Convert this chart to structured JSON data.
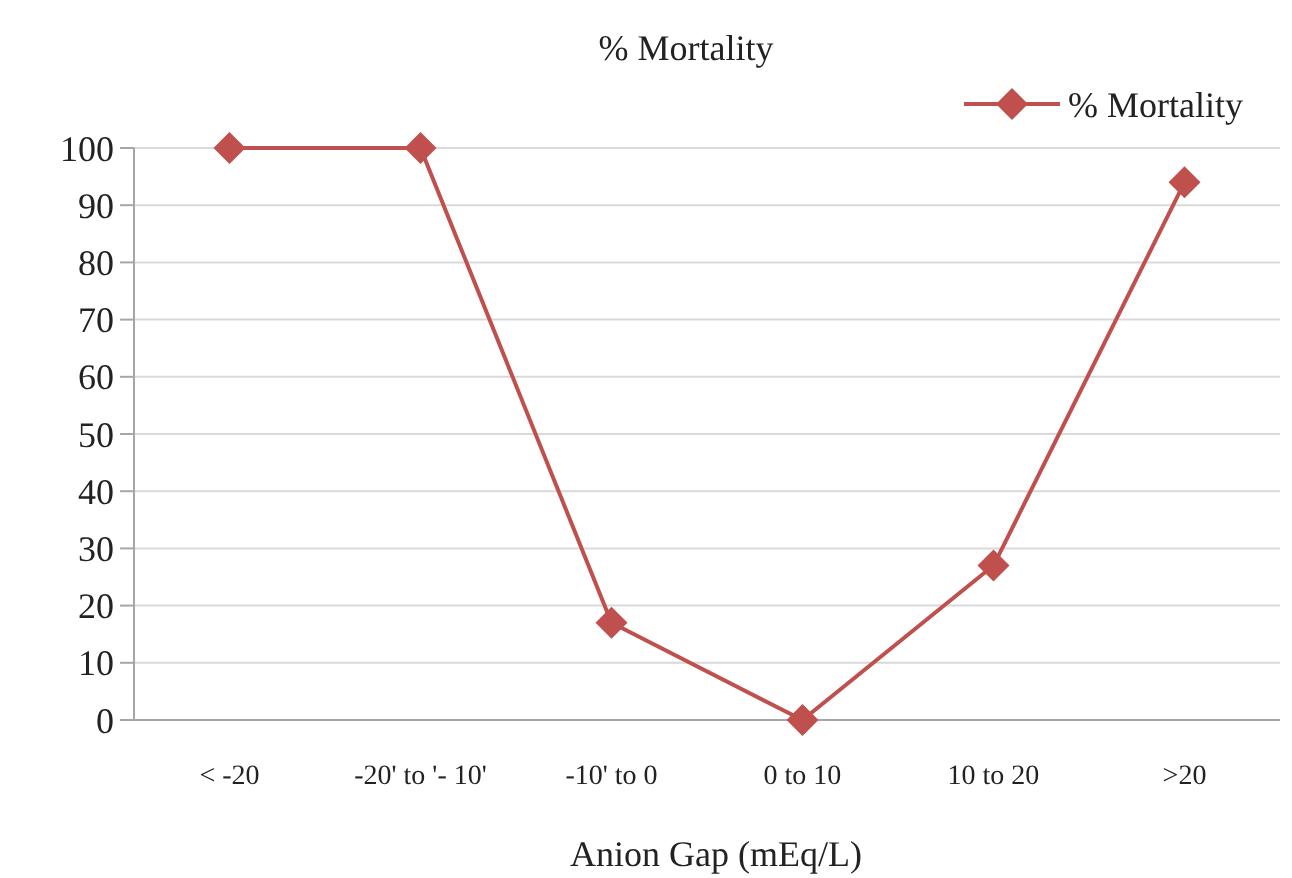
{
  "chart_data": {
    "type": "line",
    "title": "% Mortality",
    "xlabel": "Anion Gap (mEq/L)",
    "categories": [
      "< -20",
      "-20' to '- 10'",
      "-10' to 0",
      "0 to 10",
      "10 to 20",
      ">20"
    ],
    "series": [
      {
        "name": "% Mortality",
        "color": "#c0504d",
        "values": [
          100,
          100,
          17,
          0,
          27,
          94
        ]
      }
    ],
    "ylim": [
      0,
      100
    ],
    "yticks": [
      0,
      10,
      20,
      30,
      40,
      50,
      60,
      70,
      80,
      90,
      100
    ],
    "grid": "y",
    "legend": "top right",
    "marker": "diamond",
    "line_style": "solid"
  }
}
